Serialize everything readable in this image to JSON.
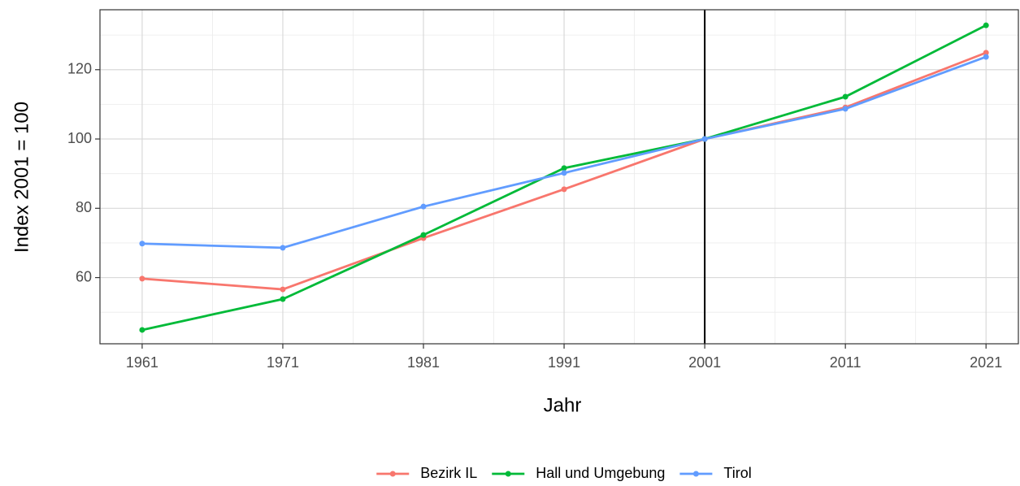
{
  "chart_data": {
    "type": "line",
    "x_label": "Jahr",
    "y_label": "Index 2001 = 100",
    "x": [
      1961,
      1971,
      1981,
      1991,
      2001,
      2011,
      2021
    ],
    "series": [
      {
        "name": "Bezirk IL",
        "color": "#F8766D",
        "values": [
          59.7,
          56.6,
          71.4,
          85.5,
          100,
          109.1,
          124.9
        ]
      },
      {
        "name": "Hall und Umgebung",
        "color": "#00BA38",
        "values": [
          44.9,
          53.8,
          72.3,
          91.6,
          100,
          112.2,
          132.8
        ]
      },
      {
        "name": "Tirol",
        "color": "#619CFF",
        "values": [
          69.8,
          68.6,
          80.5,
          90.2,
          100,
          108.7,
          123.7
        ]
      }
    ],
    "xlim": [
      1958,
      2023.3
    ],
    "ylim": [
      40.9,
      137.3
    ],
    "xticks": [
      1961,
      1971,
      1981,
      1991,
      2001,
      2011,
      2021
    ],
    "yticks": [
      60,
      80,
      100,
      120
    ],
    "xminorticks": [
      1966,
      1976,
      1986,
      1996,
      2006,
      2016
    ],
    "yminorticks": [
      50,
      70,
      90,
      110,
      130
    ],
    "vline": 2001,
    "grid": true,
    "legend": "bottom"
  }
}
